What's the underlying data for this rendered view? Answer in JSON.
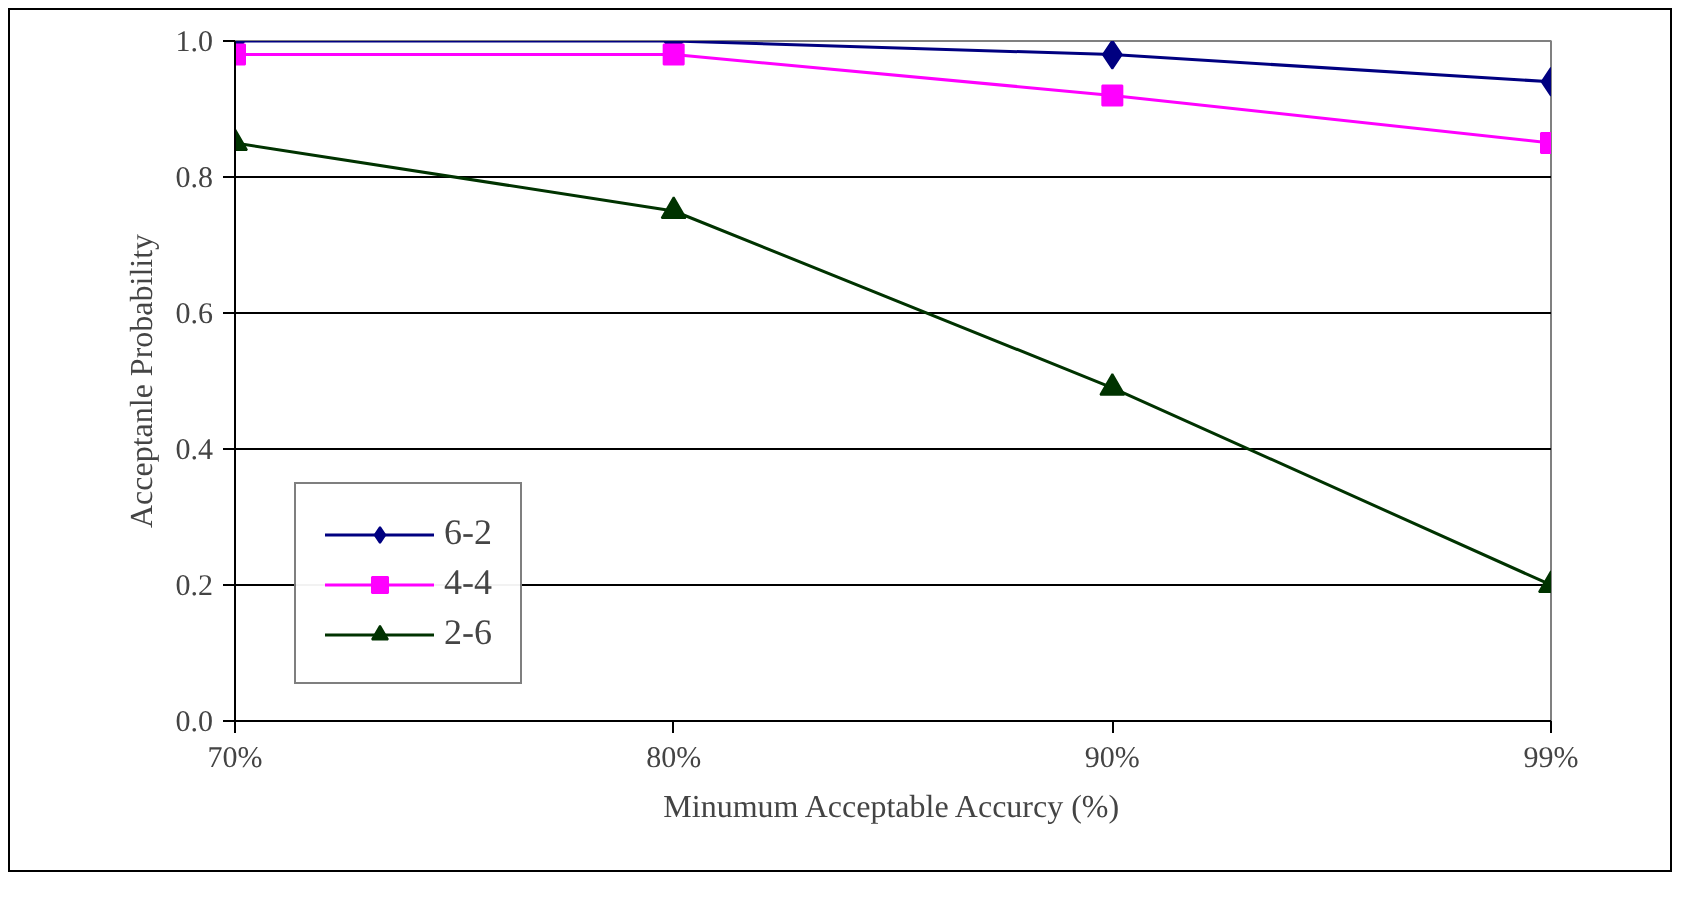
{
  "chart_data": {
    "type": "line",
    "xlabel": "Minumum Acceptable Accurcy (%)",
    "ylabel": "Acceptanle Probability",
    "categories": [
      "70%",
      "80%",
      "90%",
      "99%"
    ],
    "series": [
      {
        "name": "6-2",
        "color": "#000080",
        "marker": "diamond",
        "values": [
          1.0,
          1.0,
          0.98,
          0.94
        ]
      },
      {
        "name": "4-4",
        "color": "#ff00ff",
        "marker": "square",
        "values": [
          0.98,
          0.98,
          0.92,
          0.85
        ]
      },
      {
        "name": "2-6",
        "color": "#003300",
        "marker": "triangle",
        "values": [
          0.85,
          0.75,
          0.49,
          0.2
        ]
      }
    ],
    "ylim": [
      0,
      1
    ],
    "yticks": [
      {
        "value": 0,
        "label": "0.0"
      },
      {
        "value": 0.2,
        "label": "0.2"
      },
      {
        "value": 0.4,
        "label": "0.4"
      },
      {
        "value": 0.6,
        "label": "0.6"
      },
      {
        "value": 0.8,
        "label": "0.8"
      },
      {
        "value": 1,
        "label": "1.0"
      }
    ],
    "grid": "y",
    "legend": "bottom left",
    "line_style": "solid"
  }
}
